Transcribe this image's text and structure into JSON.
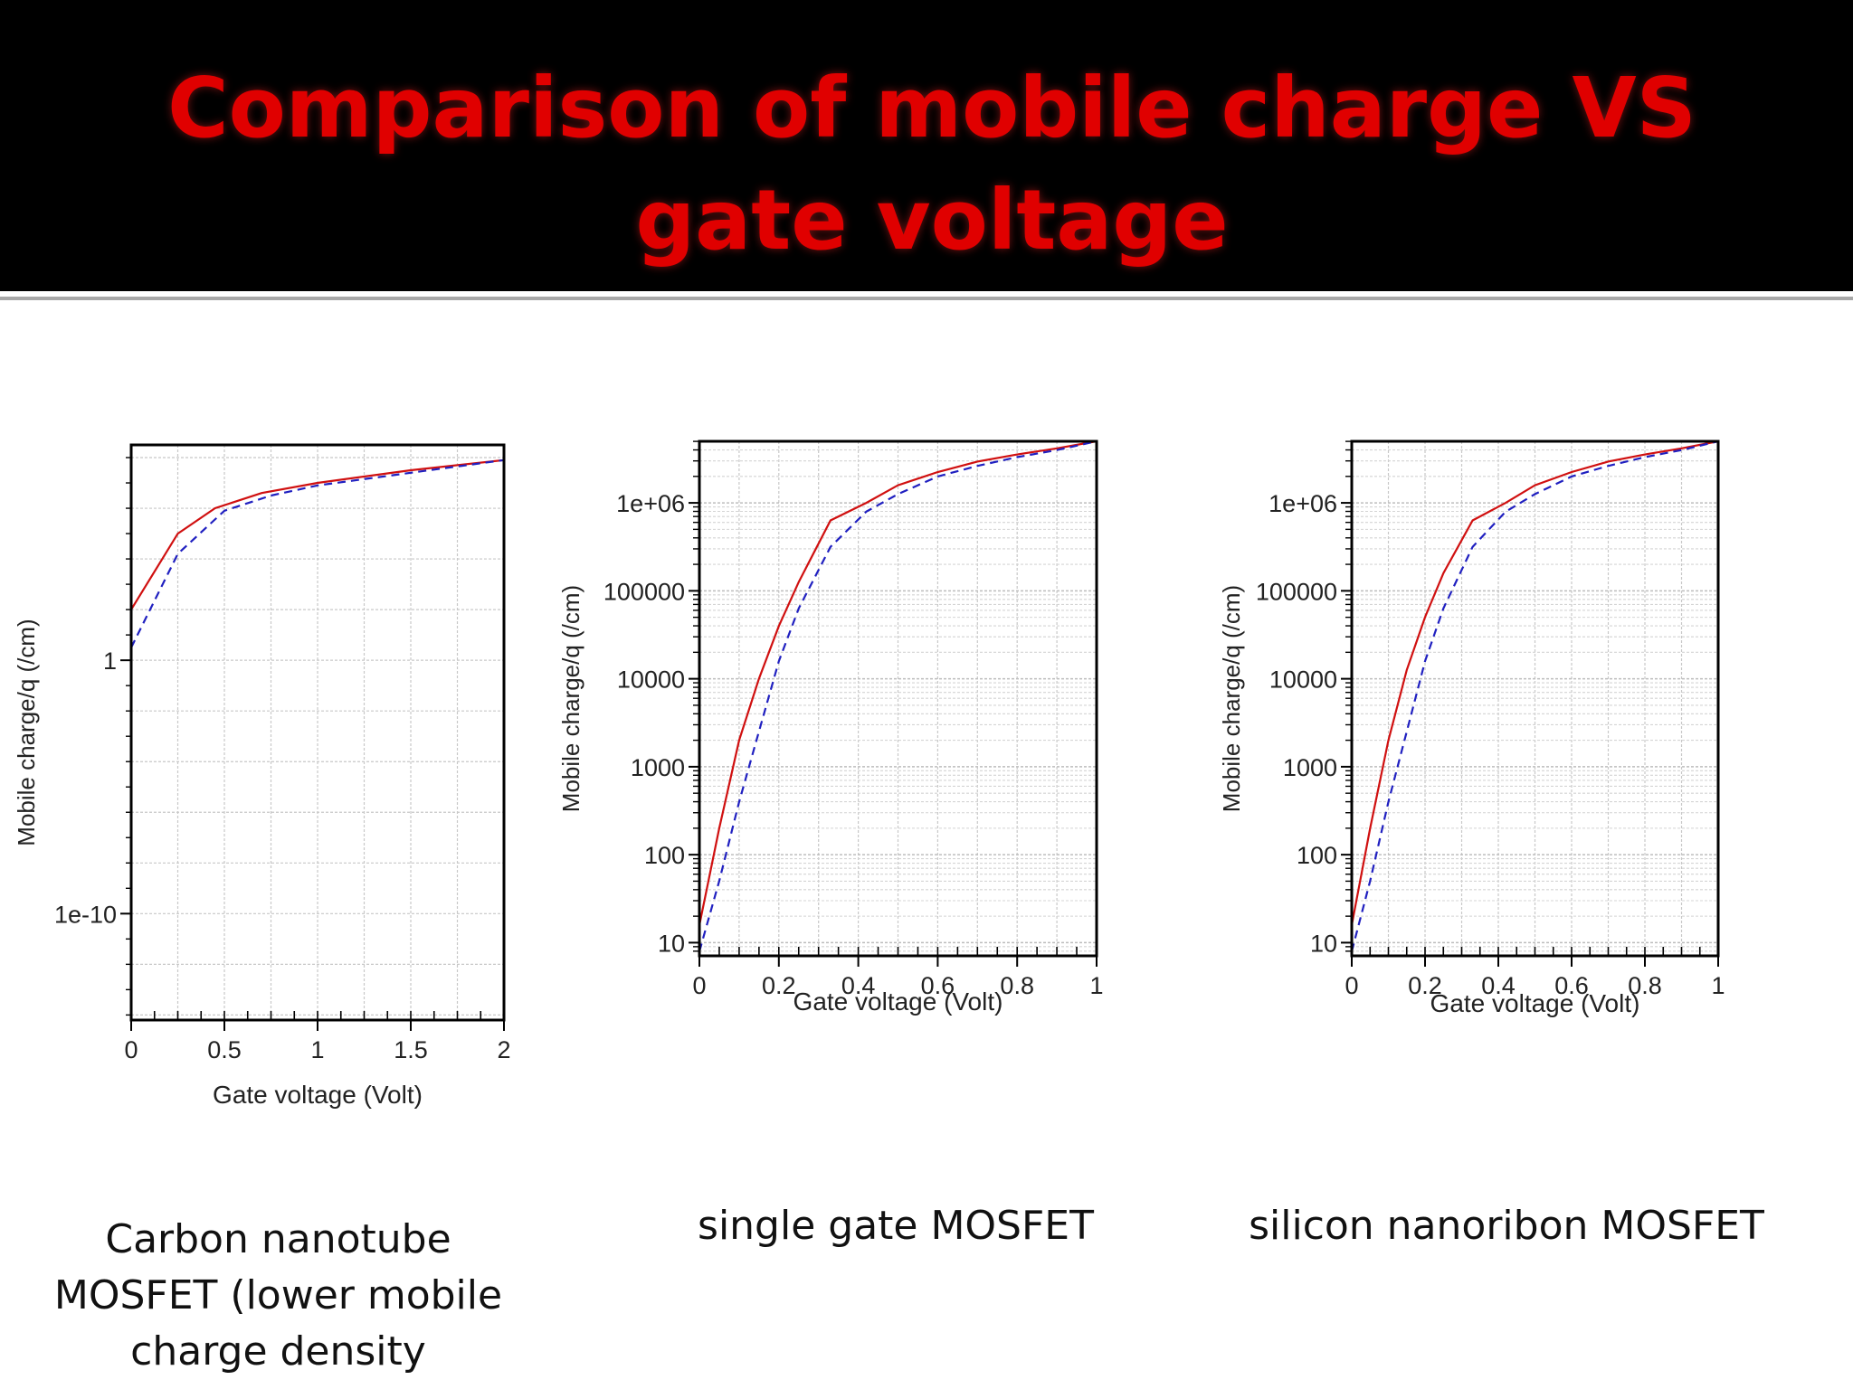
{
  "slide": {
    "title": "Comparison of mobile charge VS gate voltage",
    "colors": {
      "title": "#e00000",
      "header_bg": "#000000",
      "series_solid": "#d01010",
      "series_dashed": "#2020c0"
    }
  },
  "captions": [
    "Carbon nanotube MOSFET (lower mobile charge density",
    "single gate MOSFET",
    "silicon nanoribon MOSFET"
  ],
  "chart_data": [
    {
      "type": "line",
      "y_scale": "log",
      "xlabel": "Gate voltage (Volt)",
      "ylabel": "Mobile charge/q (/cm)",
      "xlim": [
        0,
        2
      ],
      "ylim_log10": [
        -14.2,
        8.5
      ],
      "x_ticks": [
        0,
        0.5,
        1,
        1.5,
        2
      ],
      "x_tick_labels": [
        "0",
        "0.5",
        "1",
        "1.5",
        "2"
      ],
      "y_ticks_log10": [
        0,
        -10
      ],
      "y_tick_labels": [
        "1",
        "1e-10"
      ],
      "series": [
        {
          "style": "solid",
          "x": [
            0,
            0.25,
            0.45,
            0.7,
            1,
            1.5,
            2
          ],
          "log10_y": [
            2,
            5,
            6,
            6.6,
            7,
            7.5,
            7.9
          ]
        },
        {
          "style": "dashed",
          "x": [
            0,
            0.25,
            0.5,
            0.75,
            1,
            1.5,
            2
          ],
          "log10_y": [
            0.5,
            4.2,
            5.9,
            6.5,
            6.9,
            7.4,
            7.9
          ]
        }
      ]
    },
    {
      "type": "line",
      "y_scale": "log",
      "xlabel": "Gate voltage (Volt)",
      "ylabel": "Mobile charge/q (/cm)",
      "xlim": [
        0,
        1
      ],
      "ylim_log10": [
        0.85,
        6.7
      ],
      "x_ticks": [
        0,
        0.2,
        0.4,
        0.6,
        0.8,
        1
      ],
      "x_tick_labels": [
        "0",
        "0.2",
        "0.4",
        "0.6",
        "0.8",
        "1"
      ],
      "y_ticks_log10": [
        1,
        2,
        3,
        4,
        5,
        6
      ],
      "y_tick_labels": [
        "10",
        "100",
        "1000",
        "10000",
        "100000",
        "1e+06"
      ],
      "series": [
        {
          "style": "solid",
          "x": [
            0,
            0.05,
            0.1,
            0.15,
            0.2,
            0.25,
            0.33,
            0.42,
            0.5,
            0.6,
            0.7,
            0.8,
            0.9,
            1
          ],
          "log10_y": [
            1.2,
            2.3,
            3.3,
            4.0,
            4.6,
            5.1,
            5.8,
            6.0,
            6.2,
            6.35,
            6.47,
            6.55,
            6.62,
            6.7
          ]
        },
        {
          "style": "dashed",
          "x": [
            0,
            0.05,
            0.1,
            0.15,
            0.2,
            0.25,
            0.33,
            0.42,
            0.5,
            0.6,
            0.7,
            0.8,
            0.9,
            1
          ],
          "log10_y": [
            0.9,
            1.7,
            2.6,
            3.4,
            4.2,
            4.8,
            5.5,
            5.9,
            6.1,
            6.3,
            6.42,
            6.52,
            6.6,
            6.7
          ]
        }
      ]
    },
    {
      "type": "line",
      "y_scale": "log",
      "xlabel": "Gate voltage (Volt)",
      "ylabel": "Mobile charge/q (/cm)",
      "xlim": [
        0,
        1
      ],
      "ylim_log10": [
        0.85,
        6.7
      ],
      "x_ticks": [
        0,
        0.2,
        0.4,
        0.6,
        0.8,
        1
      ],
      "x_tick_labels": [
        "0",
        "0.2",
        "0.4",
        "0.6",
        "0.8",
        "1"
      ],
      "y_ticks_log10": [
        1,
        2,
        3,
        4,
        5,
        6
      ],
      "y_tick_labels": [
        "10",
        "100",
        "1000",
        "10000",
        "100000",
        "1e+06"
      ],
      "series": [
        {
          "style": "solid",
          "x": [
            0,
            0.05,
            0.1,
            0.15,
            0.2,
            0.25,
            0.33,
            0.42,
            0.5,
            0.6,
            0.7,
            0.8,
            0.9,
            1
          ],
          "log10_y": [
            1.2,
            2.3,
            3.3,
            4.1,
            4.7,
            5.2,
            5.8,
            6.0,
            6.2,
            6.35,
            6.47,
            6.55,
            6.62,
            6.7
          ]
        },
        {
          "style": "dashed",
          "x": [
            0,
            0.05,
            0.1,
            0.15,
            0.2,
            0.25,
            0.33,
            0.42,
            0.5,
            0.6,
            0.7,
            0.8,
            0.9,
            1
          ],
          "log10_y": [
            0.9,
            1.7,
            2.6,
            3.4,
            4.2,
            4.8,
            5.5,
            5.9,
            6.1,
            6.3,
            6.42,
            6.52,
            6.6,
            6.7
          ]
        }
      ]
    }
  ]
}
